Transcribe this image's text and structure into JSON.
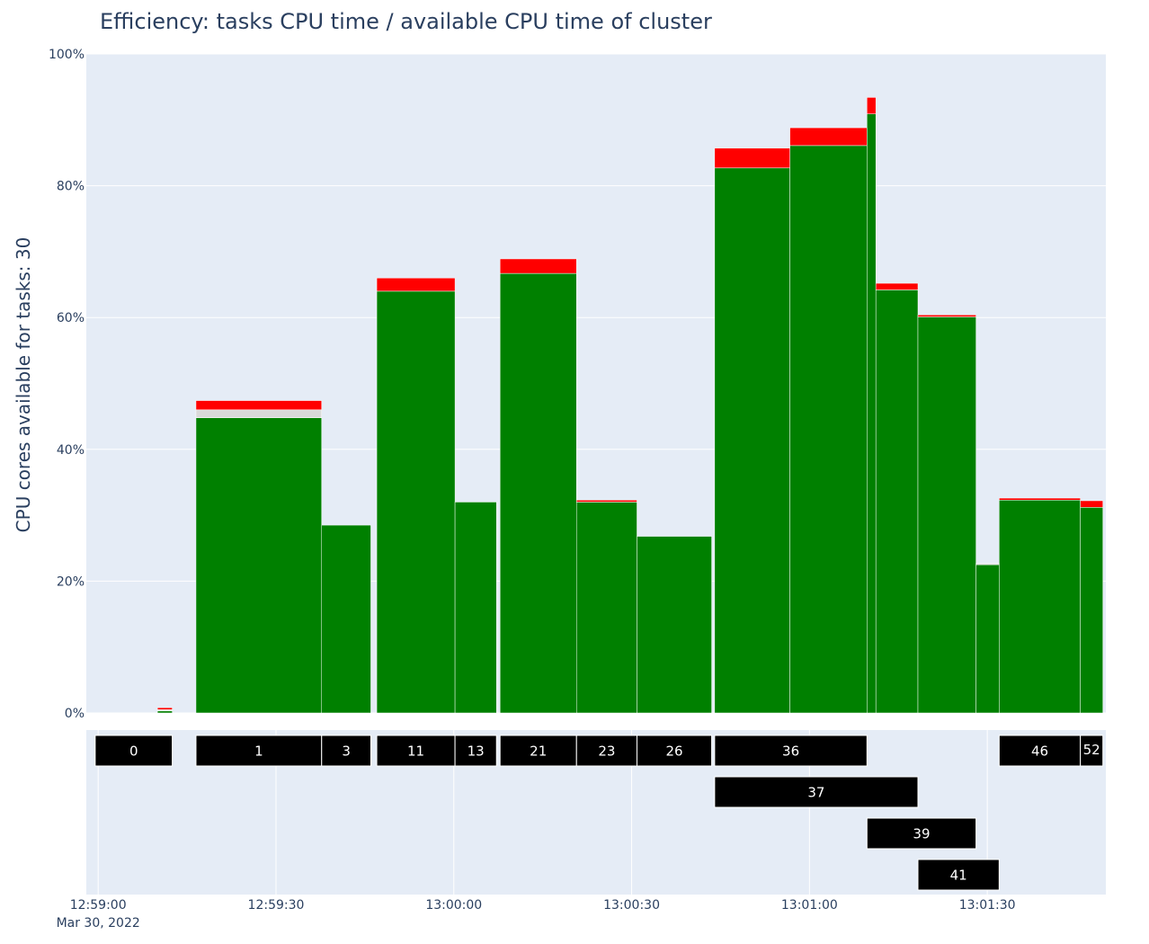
{
  "chart_data": {
    "type": "bar",
    "title": "Efficiency: tasks CPU time / available CPU time of cluster",
    "ylabel": "CPU cores available for tasks: 30",
    "ylim": [
      0,
      100
    ],
    "yticks": [
      "0%",
      "20%",
      "40%",
      "60%",
      "80%",
      "100%"
    ],
    "x_range": [
      "12:58:58",
      "13:01:50"
    ],
    "xticks": [
      {
        "t": "12:59:00",
        "label": "12:59:00",
        "sublabel": "Mar 30, 2022"
      },
      {
        "t": "12:59:30",
        "label": "12:59:30",
        "sublabel": ""
      },
      {
        "t": "13:00:00",
        "label": "13:00:00",
        "sublabel": ""
      },
      {
        "t": "13:00:30",
        "label": "13:00:30",
        "sublabel": ""
      },
      {
        "t": "13:01:00",
        "label": "13:01:00",
        "sublabel": ""
      },
      {
        "t": "13:01:30",
        "label": "13:01:30",
        "sublabel": ""
      }
    ],
    "colors": {
      "efficient": "#008000",
      "overhead": "#ff0000",
      "idle": "#d9d9d9",
      "task_fill": "#000000",
      "plot_bg": "#e5ecf6",
      "grid": "#ffffff"
    },
    "series": [
      {
        "key": "efficient",
        "bars": [
          {
            "start": "12:59:10",
            "end": "12:59:12.5",
            "value": 0.3
          },
          {
            "start": "12:59:16.5",
            "end": "12:59:37.7",
            "value": 44.8
          },
          {
            "start": "12:59:37.7",
            "end": "12:59:46",
            "value": 28.5
          },
          {
            "start": "12:59:47",
            "end": "13:00:00.2",
            "value": 64.0
          },
          {
            "start": "13:00:00.2",
            "end": "13:00:07.2",
            "value": 32.0
          },
          {
            "start": "13:00:07.8",
            "end": "13:00:20.7",
            "value": 66.7
          },
          {
            "start": "13:00:20.7",
            "end": "13:00:30.9",
            "value": 32.0
          },
          {
            "start": "13:00:30.9",
            "end": "13:00:43.5",
            "value": 26.8
          },
          {
            "start": "13:00:44",
            "end": "13:00:56.7",
            "value": 82.7
          },
          {
            "start": "13:00:56.7",
            "end": "13:01:09.7",
            "value": 86.1
          },
          {
            "start": "13:01:09.7",
            "end": "13:01:11.2",
            "value": 90.9
          },
          {
            "start": "13:01:11.2",
            "end": "13:01:18.3",
            "value": 64.2
          },
          {
            "start": "13:01:18.3",
            "end": "13:01:28.1",
            "value": 60.1
          },
          {
            "start": "13:01:28.1",
            "end": "13:01:32",
            "value": 22.5
          },
          {
            "start": "13:01:32",
            "end": "13:01:45.7",
            "value": 32.3
          },
          {
            "start": "13:01:45.7",
            "end": "13:01:49.5",
            "value": 31.2
          }
        ]
      },
      {
        "key": "idle",
        "bars": [
          {
            "start": "12:59:10",
            "end": "12:59:12.5",
            "value": 0.2
          },
          {
            "start": "12:59:16.5",
            "end": "12:59:37.7",
            "value": 1.2
          },
          {
            "start": "13:01:28.1",
            "end": "13:01:32",
            "value": 0.2
          }
        ]
      },
      {
        "key": "overhead",
        "bars": [
          {
            "start": "12:59:10",
            "end": "12:59:12.5",
            "value": 0.3
          },
          {
            "start": "12:59:16.5",
            "end": "12:59:37.7",
            "value": 1.4
          },
          {
            "start": "13:00:20.7",
            "end": "13:00:30.9",
            "value": 0.3
          },
          {
            "start": "12:59:47",
            "end": "13:00:00.2",
            "value": 2.0
          },
          {
            "start": "13:00:07.8",
            "end": "13:00:20.7",
            "value": 2.2
          },
          {
            "start": "13:00:44",
            "end": "13:00:56.7",
            "value": 3.0
          },
          {
            "start": "13:00:56.7",
            "end": "13:01:09.7",
            "value": 2.7
          },
          {
            "start": "13:01:09.7",
            "end": "13:01:11.2",
            "value": 2.5
          },
          {
            "start": "13:01:11.2",
            "end": "13:01:18.3",
            "value": 1.0
          },
          {
            "start": "13:01:18.3",
            "end": "13:01:28.1",
            "value": 0.3
          },
          {
            "start": "13:01:32",
            "end": "13:01:45.7",
            "value": 0.3
          },
          {
            "start": "13:01:45.7",
            "end": "13:01:49.5",
            "value": 1.0
          }
        ]
      }
    ],
    "tasks": [
      {
        "label": "0",
        "start": "12:58:59.5",
        "end": "12:59:12.5",
        "row": 0
      },
      {
        "label": "1",
        "start": "12:59:16.5",
        "end": "12:59:37.7",
        "row": 0
      },
      {
        "label": "3",
        "start": "12:59:37.7",
        "end": "12:59:46",
        "row": 0
      },
      {
        "label": "11",
        "start": "12:59:47",
        "end": "13:00:00.2",
        "row": 0
      },
      {
        "label": "13",
        "start": "13:00:00.2",
        "end": "13:00:07.2",
        "row": 0
      },
      {
        "label": "21",
        "start": "13:00:07.8",
        "end": "13:00:20.7",
        "row": 0
      },
      {
        "label": "23",
        "start": "13:00:20.7",
        "end": "13:00:30.9",
        "row": 0
      },
      {
        "label": "26",
        "start": "13:00:30.9",
        "end": "13:00:43.5",
        "row": 0
      },
      {
        "label": "36",
        "start": "13:00:44",
        "end": "13:01:09.7",
        "row": 0
      },
      {
        "label": "46",
        "start": "13:01:32",
        "end": "13:01:45.7",
        "row": 0
      },
      {
        "label": "52",
        "start": "13:01:45.7",
        "end": "13:01:49.5",
        "row": 0
      },
      {
        "label": "37",
        "start": "13:00:44",
        "end": "13:01:18.3",
        "row": 1
      },
      {
        "label": "39",
        "start": "13:01:09.7",
        "end": "13:01:28.1",
        "row": 2
      },
      {
        "label": "41",
        "start": "13:01:18.3",
        "end": "13:01:32",
        "row": 3
      }
    ]
  }
}
